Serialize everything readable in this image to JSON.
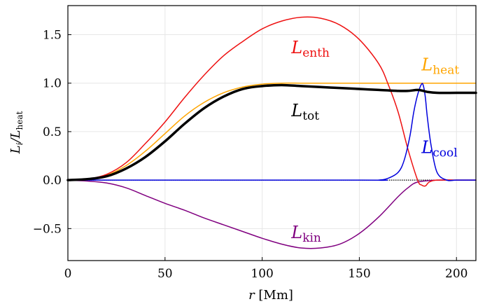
{
  "chart_data": {
    "type": "line",
    "xlabel": "r [Mm]",
    "ylabel": "L_i / L_heat",
    "xlim": [
      0,
      210
    ],
    "ylim": [
      -0.83,
      1.8
    ],
    "xticks": [
      0,
      50,
      100,
      150,
      200
    ],
    "yticks": [
      -0.5,
      0.0,
      0.5,
      1.0,
      1.5
    ],
    "xtick_labels": [
      "0",
      "50",
      "100",
      "150",
      "200"
    ],
    "ytick_labels": [
      "−0.5",
      "0.0",
      "0.5",
      "1.0",
      "1.5"
    ],
    "grid": true,
    "reference_line": {
      "y": 0,
      "style": "dotted",
      "color": "#000000"
    },
    "series": [
      {
        "name": "L_enth",
        "main": "L",
        "sub": "enth",
        "color": "#ee1111",
        "width": 1.5,
        "label_at": [
          115,
          1.31
        ],
        "x": [
          0,
          10,
          20,
          30,
          40,
          50,
          60,
          70,
          80,
          90,
          100,
          110,
          120,
          130,
          140,
          150,
          160,
          165,
          170,
          175,
          180,
          182,
          184,
          186,
          190,
          200,
          210
        ],
        "y": [
          0.0,
          0.01,
          0.06,
          0.18,
          0.38,
          0.6,
          0.85,
          1.08,
          1.28,
          1.43,
          1.56,
          1.64,
          1.68,
          1.67,
          1.6,
          1.45,
          1.2,
          0.98,
          0.7,
          0.32,
          0.0,
          -0.05,
          -0.06,
          -0.02,
          0.0,
          0.0,
          0.0
        ]
      },
      {
        "name": "L_heat",
        "main": "L",
        "sub": "heat",
        "color": "#ffa500",
        "width": 1.5,
        "label_at": [
          182,
          1.13
        ],
        "x": [
          0,
          10,
          20,
          30,
          40,
          50,
          60,
          70,
          80,
          90,
          100,
          110,
          120,
          130,
          140,
          150,
          160,
          170,
          180,
          190,
          200,
          210
        ],
        "y": [
          0.0,
          0.01,
          0.05,
          0.15,
          0.3,
          0.48,
          0.66,
          0.8,
          0.9,
          0.96,
          0.99,
          1.0,
          1.0,
          1.0,
          1.0,
          1.0,
          1.0,
          1.0,
          1.0,
          1.0,
          1.0,
          1.0
        ]
      },
      {
        "name": "L_tot",
        "main": "L",
        "sub": "tot",
        "color": "#000000",
        "width": 3.5,
        "label_at": [
          115,
          0.66
        ],
        "x": [
          0,
          10,
          20,
          30,
          40,
          50,
          60,
          70,
          80,
          90,
          100,
          110,
          120,
          130,
          140,
          150,
          160,
          170,
          175,
          180,
          183,
          185,
          190,
          200,
          210
        ],
        "y": [
          0.0,
          0.01,
          0.04,
          0.12,
          0.24,
          0.4,
          0.58,
          0.74,
          0.86,
          0.94,
          0.97,
          0.98,
          0.97,
          0.96,
          0.95,
          0.94,
          0.93,
          0.92,
          0.92,
          0.93,
          0.92,
          0.91,
          0.9,
          0.9,
          0.9
        ]
      },
      {
        "name": "L_cool",
        "main": "L",
        "sub": "cool",
        "color": "#0000dd",
        "width": 1.5,
        "label_at": [
          182,
          0.28
        ],
        "x": [
          0,
          150,
          160,
          165,
          170,
          173,
          176,
          178,
          180,
          182,
          183,
          184,
          185,
          187,
          190,
          195,
          200,
          210
        ],
        "y": [
          0.0,
          0.0,
          0.0,
          0.02,
          0.08,
          0.2,
          0.45,
          0.7,
          0.88,
          0.99,
          0.97,
          0.85,
          0.65,
          0.35,
          0.08,
          0.0,
          0.0,
          0.0
        ]
      },
      {
        "name": "L_kin",
        "main": "L",
        "sub": "kin",
        "color": "#800080",
        "width": 1.5,
        "label_at": [
          115,
          -0.6
        ],
        "x": [
          0,
          10,
          20,
          30,
          40,
          50,
          60,
          70,
          80,
          90,
          100,
          110,
          120,
          130,
          140,
          150,
          160,
          170,
          175,
          180,
          190,
          200,
          210
        ],
        "y": [
          0.0,
          -0.01,
          -0.03,
          -0.08,
          -0.16,
          -0.24,
          -0.31,
          -0.39,
          -0.46,
          -0.53,
          -0.6,
          -0.66,
          -0.7,
          -0.7,
          -0.66,
          -0.55,
          -0.38,
          -0.17,
          -0.08,
          -0.02,
          0.0,
          0.0,
          0.0
        ]
      }
    ]
  }
}
